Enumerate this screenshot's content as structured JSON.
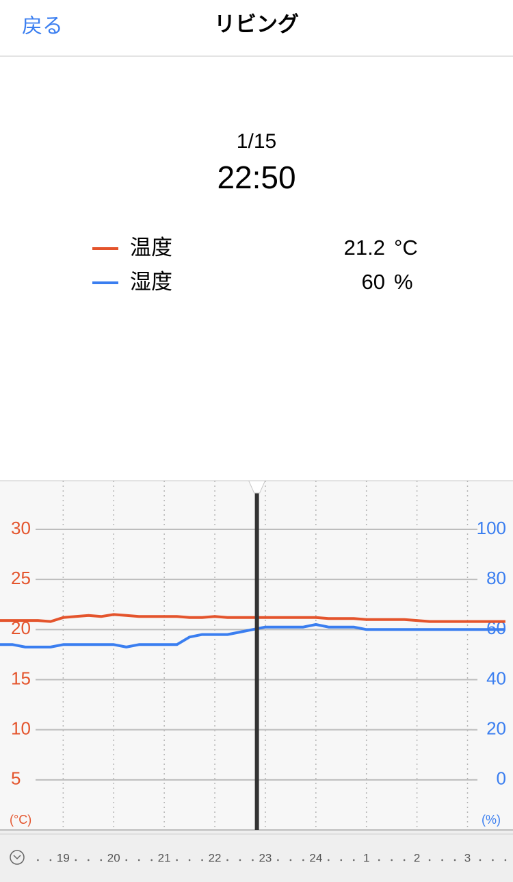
{
  "header": {
    "back": "戻る",
    "title": "リビング"
  },
  "readout": {
    "date": "1/15",
    "time": "22:50",
    "rows": [
      {
        "value": 21.2,
        "unit": "°C"
      },
      {
        "value": 60,
        "unit": "%"
      }
    ]
  },
  "chart_data": {
    "type": "line",
    "x": [
      17.75,
      18,
      18.25,
      18.5,
      18.75,
      19,
      19.25,
      19.5,
      19.75,
      20,
      20.25,
      20.5,
      20.75,
      21,
      21.25,
      21.5,
      21.75,
      22,
      22.25,
      22.5,
      22.75,
      23,
      23.25,
      23.5,
      23.75,
      24,
      24.25,
      24.5,
      24.75,
      25,
      25.25,
      25.5,
      25.75,
      26,
      26.25,
      26.5,
      26.75,
      27,
      27.25,
      27.5,
      27.75
    ],
    "series": [
      {
        "name": "温度",
        "color": "#e4542c",
        "values": [
          20.9,
          20.9,
          20.9,
          20.9,
          20.8,
          21.2,
          21.3,
          21.4,
          21.3,
          21.5,
          21.4,
          21.3,
          21.3,
          21.3,
          21.3,
          21.2,
          21.2,
          21.3,
          21.2,
          21.2,
          21.2,
          21.2,
          21.2,
          21.2,
          21.2,
          21.2,
          21.1,
          21.1,
          21.1,
          21.0,
          21.0,
          21.0,
          21.0,
          20.9,
          20.8,
          20.8,
          20.8,
          20.8,
          20.8,
          20.8,
          20.8
        ]
      },
      {
        "name": "湿度",
        "color": "#3a7ef0",
        "axis": "y2",
        "values": [
          54,
          54,
          53,
          53,
          53,
          54,
          54,
          54,
          54,
          54,
          53,
          54,
          54,
          54,
          54,
          57,
          58,
          58,
          58,
          59,
          60,
          61,
          61,
          61,
          61,
          62,
          61,
          61,
          61,
          60,
          60,
          60,
          60,
          60,
          60,
          60,
          60,
          60,
          60,
          60,
          60
        ]
      }
    ],
    "xlim": [
      17.75,
      27.9
    ],
    "xticks": [
      19,
      20,
      21,
      22,
      23,
      24,
      {
        "value": 25,
        "label": "1"
      },
      {
        "value": 26,
        "label": "2"
      },
      {
        "value": 27,
        "label": "3"
      }
    ],
    "ylim": [
      0,
      34.85
    ],
    "yticks": [
      5,
      10,
      15,
      20,
      25,
      30
    ],
    "ylabel": "(°C)",
    "y2lim": [
      -20,
      119.4
    ],
    "y2ticks": [
      0,
      20,
      40,
      60,
      80,
      100
    ],
    "y2label": "(%)",
    "grid": true
  }
}
